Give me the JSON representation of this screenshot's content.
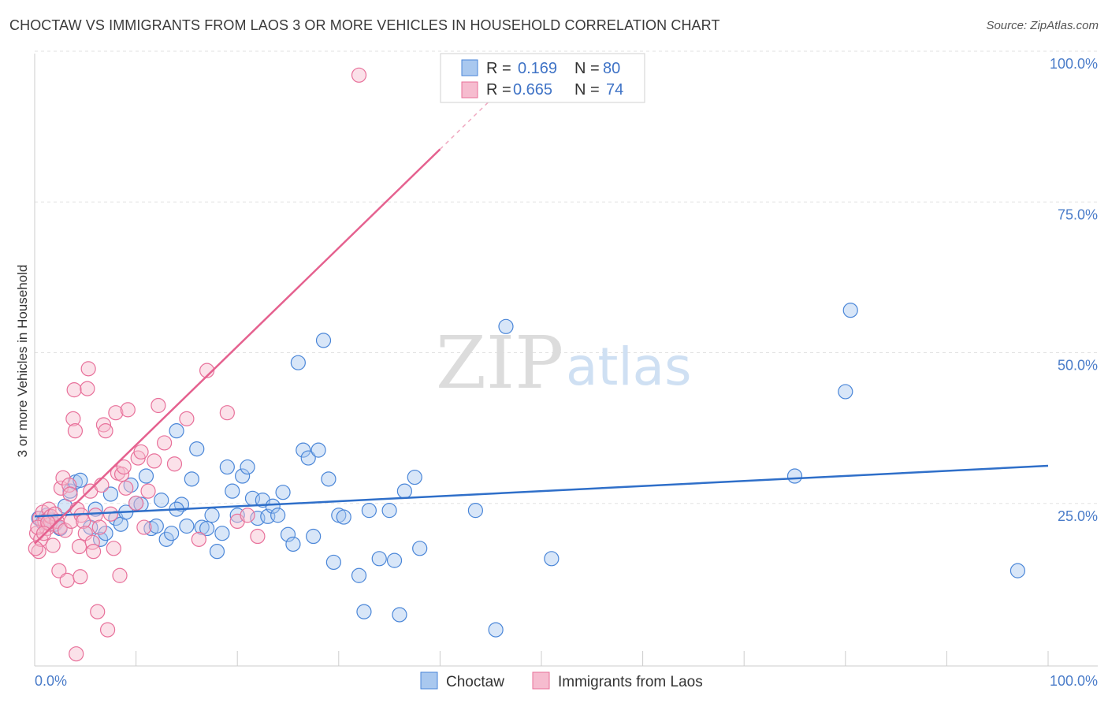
{
  "title": "CHOCTAW VS IMMIGRANTS FROM LAOS 3 OR MORE VEHICLES IN HOUSEHOLD CORRELATION CHART",
  "source": "Source: ZipAtlas.com",
  "watermark": {
    "zip": "ZIP",
    "atlas": "atlas"
  },
  "chart_data": {
    "type": "scatter",
    "title": "CHOCTAW VS IMMIGRANTS FROM LAOS 3 OR MORE VEHICLES IN HOUSEHOLD CORRELATION CHART",
    "xlabel": "",
    "ylabel": "3 or more Vehicles in Household",
    "xlim": [
      0,
      100
    ],
    "ylim": [
      0,
      100
    ],
    "x_tick_labels": {
      "min": "0.0%",
      "max": "100.0%"
    },
    "y_ticks": [
      {
        "value": 25,
        "label": "25.0%"
      },
      {
        "value": 50,
        "label": "50.0%"
      },
      {
        "value": 75,
        "label": "75.0%"
      },
      {
        "value": 100,
        "label": "100.0%"
      }
    ],
    "grid": true,
    "legend": {
      "position": "top-center",
      "rows": [
        {
          "r_label": "R =",
          "r_value": "0.169",
          "n_label": "N =",
          "n_value": "80"
        },
        {
          "r_label": "R =",
          "r_value": "0.665",
          "n_label": "N =",
          "n_value": "74"
        }
      ]
    },
    "series": [
      {
        "name": "Choctaw",
        "color": "#4a86d8",
        "fill": "#a9c8ef",
        "trend": {
          "x": [
            0,
            100
          ],
          "y": [
            24.8,
            33.2
          ]
        },
        "points": [
          [
            0.4,
            24.5
          ],
          [
            0.8,
            23.8
          ],
          [
            1.2,
            25.0
          ],
          [
            1.6,
            24.2
          ],
          [
            2.0,
            23.5
          ],
          [
            2.5,
            22.8
          ],
          [
            3.0,
            26.5
          ],
          [
            3.5,
            29.0
          ],
          [
            4.0,
            30.5
          ],
          [
            4.5,
            30.8
          ],
          [
            5.5,
            23.0
          ],
          [
            6.0,
            26.0
          ],
          [
            6.5,
            21.0
          ],
          [
            7.0,
            22.0
          ],
          [
            7.5,
            28.5
          ],
          [
            8.0,
            24.5
          ],
          [
            8.5,
            23.5
          ],
          [
            9.0,
            25.5
          ],
          [
            9.5,
            30.0
          ],
          [
            10.0,
            27.0
          ],
          [
            10.5,
            26.8
          ],
          [
            11.0,
            31.5
          ],
          [
            11.5,
            22.8
          ],
          [
            12.0,
            23.2
          ],
          [
            12.5,
            27.5
          ],
          [
            13.0,
            21.0
          ],
          [
            13.5,
            22.0
          ],
          [
            14.0,
            39.0
          ],
          [
            14.5,
            26.8
          ],
          [
            15.0,
            23.2
          ],
          [
            15.5,
            31.0
          ],
          [
            16.0,
            36.0
          ],
          [
            16.5,
            23.0
          ],
          [
            17.0,
            22.8
          ],
          [
            17.5,
            25.0
          ],
          [
            18.0,
            19.0
          ],
          [
            18.5,
            22.0
          ],
          [
            19.0,
            33.0
          ],
          [
            19.5,
            29.0
          ],
          [
            20.0,
            25.0
          ],
          [
            20.5,
            31.5
          ],
          [
            21.0,
            33.0
          ],
          [
            21.5,
            27.8
          ],
          [
            22.0,
            24.5
          ],
          [
            22.5,
            27.5
          ],
          [
            23.0,
            24.8
          ],
          [
            23.5,
            26.5
          ],
          [
            24.0,
            25.0
          ],
          [
            24.5,
            28.8
          ],
          [
            25.0,
            21.8
          ],
          [
            25.5,
            20.2
          ],
          [
            26.0,
            50.3
          ],
          [
            26.5,
            35.8
          ],
          [
            27.0,
            34.5
          ],
          [
            27.5,
            21.5
          ],
          [
            28.0,
            35.8
          ],
          [
            28.5,
            54.0
          ],
          [
            29.0,
            31.0
          ],
          [
            29.5,
            17.2
          ],
          [
            30.0,
            25.0
          ],
          [
            30.5,
            24.7
          ],
          [
            32.0,
            15.0
          ],
          [
            32.5,
            9.0
          ],
          [
            33.0,
            25.8
          ],
          [
            34.0,
            17.8
          ],
          [
            35.0,
            25.8
          ],
          [
            35.5,
            17.5
          ],
          [
            36.0,
            8.5
          ],
          [
            36.5,
            29.0
          ],
          [
            37.5,
            31.3
          ],
          [
            38.0,
            19.5
          ],
          [
            43.5,
            25.8
          ],
          [
            45.5,
            6.0
          ],
          [
            46.5,
            56.3
          ],
          [
            51.0,
            17.8
          ],
          [
            75.0,
            31.5
          ],
          [
            80.0,
            45.5
          ],
          [
            80.5,
            59.0
          ],
          [
            97.0,
            15.8
          ],
          [
            14.0,
            26.0
          ]
        ]
      },
      {
        "name": "Immigrants from Laos",
        "color": "#e8709a",
        "fill": "#f6bccf",
        "trend": {
          "x": [
            0,
            40
          ],
          "y": [
            20.3,
            85.7
          ]
        },
        "trend_dashed": {
          "x": [
            40,
            45
          ],
          "y": [
            85.7,
            93.9
          ]
        },
        "points": [
          [
            0.2,
            22.0
          ],
          [
            0.4,
            19.0
          ],
          [
            0.5,
            24.5
          ],
          [
            0.6,
            21.0
          ],
          [
            0.8,
            25.5
          ],
          [
            1.0,
            24.0
          ],
          [
            1.2,
            22.8
          ],
          [
            1.4,
            26.0
          ],
          [
            1.5,
            23.5
          ],
          [
            1.6,
            24.8
          ],
          [
            1.8,
            20.0
          ],
          [
            2.0,
            25.2
          ],
          [
            2.2,
            24.0
          ],
          [
            2.4,
            15.8
          ],
          [
            2.5,
            23.0
          ],
          [
            2.6,
            29.5
          ],
          [
            2.8,
            31.2
          ],
          [
            3.0,
            22.5
          ],
          [
            3.2,
            14.2
          ],
          [
            3.4,
            30.0
          ],
          [
            3.5,
            28.5
          ],
          [
            3.6,
            24.0
          ],
          [
            3.8,
            41.0
          ],
          [
            3.9,
            45.8
          ],
          [
            4.0,
            39.0
          ],
          [
            4.2,
            26.0
          ],
          [
            4.4,
            19.8
          ],
          [
            4.5,
            14.8
          ],
          [
            4.6,
            25.0
          ],
          [
            4.8,
            24.0
          ],
          [
            5.0,
            22.0
          ],
          [
            5.2,
            46.0
          ],
          [
            5.3,
            49.3
          ],
          [
            5.5,
            29.0
          ],
          [
            5.7,
            20.5
          ],
          [
            5.8,
            19.0
          ],
          [
            6.0,
            25.0
          ],
          [
            6.2,
            9.0
          ],
          [
            6.4,
            23.0
          ],
          [
            6.6,
            30.0
          ],
          [
            6.8,
            40.0
          ],
          [
            7.0,
            39.0
          ],
          [
            7.2,
            6.0
          ],
          [
            7.5,
            25.2
          ],
          [
            7.8,
            19.5
          ],
          [
            8.0,
            42.0
          ],
          [
            8.2,
            32.0
          ],
          [
            8.4,
            15.0
          ],
          [
            8.6,
            31.8
          ],
          [
            8.8,
            33.0
          ],
          [
            9.0,
            29.5
          ],
          [
            9.2,
            42.5
          ],
          [
            10.0,
            27.0
          ],
          [
            10.2,
            34.5
          ],
          [
            10.5,
            35.5
          ],
          [
            10.8,
            23.0
          ],
          [
            11.2,
            29.0
          ],
          [
            11.8,
            34.0
          ],
          [
            12.2,
            43.2
          ],
          [
            12.8,
            37.0
          ],
          [
            13.8,
            33.5
          ],
          [
            15.0,
            41.0
          ],
          [
            16.2,
            21.0
          ],
          [
            17.0,
            49.0
          ],
          [
            19.0,
            42.0
          ],
          [
            20.0,
            24.0
          ],
          [
            21.0,
            25.0
          ],
          [
            22.0,
            21.5
          ],
          [
            0.3,
            23.0
          ],
          [
            1.3,
            23.8
          ],
          [
            0.1,
            19.5
          ],
          [
            0.9,
            22.0
          ],
          [
            4.1,
            2.0
          ],
          [
            32.0,
            98.0
          ]
        ]
      }
    ]
  },
  "bottom_legend": [
    {
      "label": "Choctaw"
    },
    {
      "label": "Immigrants from Laos"
    }
  ]
}
